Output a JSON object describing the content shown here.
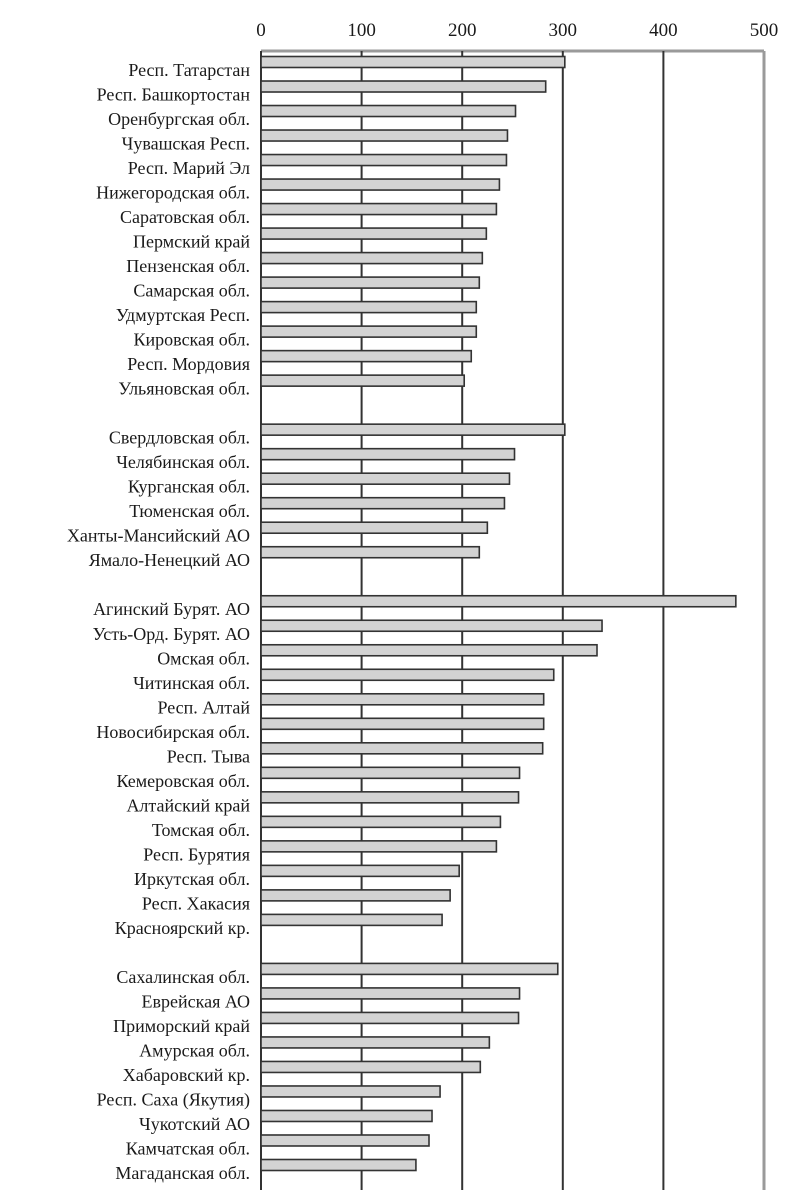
{
  "chart_data": {
    "type": "bar",
    "orientation": "horizontal",
    "title": "",
    "xlabel": "",
    "ylabel": "",
    "xlim": [
      0,
      500
    ],
    "x_ticks": [
      "0",
      "100",
      "200",
      "300",
      "400",
      "500"
    ],
    "grid": true,
    "categories": [
      "Респ. Татарстан",
      "Респ. Башкортостан",
      "Оренбургская обл.",
      "Чувашская Респ.",
      "Респ. Марий Эл",
      "Нижегородская обл.",
      "Саратовская обл.",
      "Пермский край",
      "Пензенская обл.",
      "Самарская обл.",
      "Удмуртская Респ.",
      "Кировская обл.",
      "Респ. Мордовия",
      "Ульяновская обл.",
      "",
      "Свердловская обл.",
      "Челябинская обл.",
      "Курганская обл.",
      "Тюменская обл.",
      "Ханты-Мансийский АО",
      "Ямало-Ненецкий АО",
      "",
      "Агинский  Бурят. АО",
      "Усть-Орд. Бурят. АО",
      "Омская обл.",
      "Читинская обл.",
      "Респ. Алтай",
      "Новосибирская обл.",
      "Респ. Тыва",
      "Кемеровская обл.",
      "Алтайский край",
      "Томская обл.",
      "Респ. Бурятия",
      "Иркутская обл.",
      "Респ. Хакасия",
      "Красноярский кр.",
      "",
      "Сахалинская обл.",
      "Еврейская АО",
      "Приморский край",
      "Амурская обл.",
      "Хабаровский кр.",
      "Респ. Саха (Якутия)",
      "Чукотский АО",
      "Камчатская обл.",
      "Магаданская обл."
    ],
    "values": [
      302,
      283,
      253,
      245,
      244,
      237,
      234,
      224,
      220,
      217,
      214,
      214,
      209,
      202,
      null,
      302,
      252,
      247,
      242,
      225,
      217,
      null,
      472,
      339,
      334,
      291,
      281,
      281,
      280,
      257,
      256,
      238,
      234,
      197,
      188,
      180,
      null,
      295,
      257,
      256,
      227,
      218,
      178,
      170,
      167,
      154
    ],
    "bar_color": "#d3d3d3",
    "bar_edge_color": "#333333"
  }
}
